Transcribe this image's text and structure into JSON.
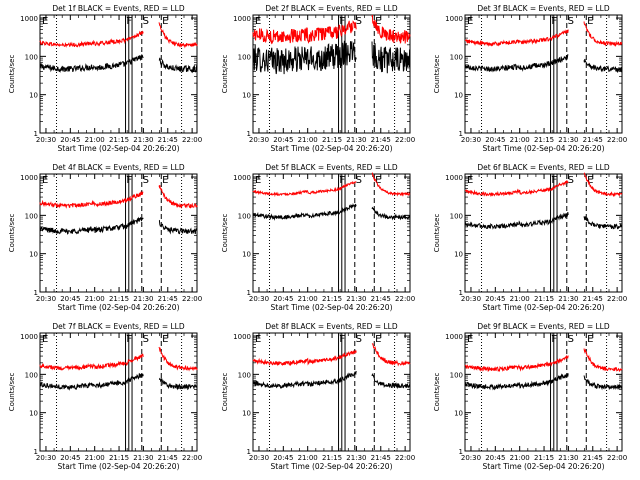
{
  "figure": {
    "xtick_labels": [
      "20:30",
      "20:45",
      "21:00",
      "21:15",
      "21:30",
      "21:45",
      "22:00"
    ],
    "ytick_labels": [
      "1",
      "10",
      "100",
      "1000"
    ],
    "xlabel": "Start Time (02-Sep-04 20:26:20)",
    "ylabel": "Counts/sec",
    "colors": {
      "events": "#000000",
      "lld": "#ff0000",
      "axes": "#000000"
    }
  },
  "chart_data": [
    {
      "type": "line",
      "title": "Det 1f BLACK = Events, RED = LLD",
      "series": [
        {
          "name": "Events",
          "level": 55,
          "noise": 0.08,
          "color": "#000000"
        },
        {
          "name": "LLD",
          "level": 230,
          "noise": 0.05,
          "color": "#ff0000"
        }
      ],
      "xlabel": "Start Time (02-Sep-04 20:26:20)",
      "ylabel": "Counts/sec",
      "ylim": [
        1,
        1200
      ],
      "log_y": true,
      "marker_letters": [
        "E",
        "F",
        "S",
        "E"
      ]
    },
    {
      "type": "line",
      "title": "Det 2f BLACK = Events, RED = LLD",
      "series": [
        {
          "name": "Events",
          "level": 90,
          "noise": 0.35,
          "color": "#000000"
        },
        {
          "name": "LLD",
          "level": 380,
          "noise": 0.18,
          "color": "#ff0000"
        }
      ],
      "xlabel": "Start Time (02-Sep-04 20:26:20)",
      "ylabel": "Counts/sec",
      "ylim": [
        1,
        1200
      ],
      "log_y": true,
      "marker_letters": [
        "E",
        "F",
        "S",
        "E"
      ]
    },
    {
      "type": "line",
      "title": "Det 3f BLACK = Events, RED = LLD",
      "series": [
        {
          "name": "Events",
          "level": 55,
          "noise": 0.07,
          "color": "#000000"
        },
        {
          "name": "LLD",
          "level": 250,
          "noise": 0.05,
          "color": "#ff0000"
        }
      ],
      "xlabel": "Start Time (02-Sep-04 20:26:20)",
      "ylabel": "Counts/sec",
      "ylim": [
        1,
        1200
      ],
      "log_y": true,
      "marker_letters": [
        "E",
        "F",
        "S",
        "E"
      ]
    },
    {
      "type": "line",
      "title": "Det 4f BLACK = Events, RED = LLD",
      "series": [
        {
          "name": "Events",
          "level": 45,
          "noise": 0.07,
          "color": "#000000"
        },
        {
          "name": "LLD",
          "level": 210,
          "noise": 0.05,
          "color": "#ff0000"
        }
      ],
      "xlabel": "Start Time (02-Sep-04 20:26:20)",
      "ylabel": "Counts/sec",
      "ylim": [
        1,
        1200
      ],
      "log_y": true,
      "marker_letters": [
        "E",
        "F",
        "S",
        "E"
      ]
    },
    {
      "type": "line",
      "title": "Det 5f BLACK = Events, RED = LLD",
      "series": [
        {
          "name": "Events",
          "level": 105,
          "noise": 0.05,
          "color": "#000000"
        },
        {
          "name": "LLD",
          "level": 420,
          "noise": 0.03,
          "color": "#ff0000"
        }
      ],
      "xlabel": "Start Time (02-Sep-04 20:26:20)",
      "ylabel": "Counts/sec",
      "ylim": [
        1,
        1200
      ],
      "log_y": true,
      "marker_letters": [
        "E",
        "F",
        "S",
        "E"
      ]
    },
    {
      "type": "line",
      "title": "Det 6f BLACK = Events, RED = LLD",
      "series": [
        {
          "name": "Events",
          "level": 60,
          "noise": 0.06,
          "color": "#000000"
        },
        {
          "name": "LLD",
          "level": 420,
          "noise": 0.04,
          "color": "#ff0000"
        }
      ],
      "xlabel": "Start Time (02-Sep-04 20:26:20)",
      "ylabel": "Counts/sec",
      "ylim": [
        1,
        1200
      ],
      "log_y": true,
      "marker_letters": [
        "E",
        "F",
        "S",
        "E"
      ]
    },
    {
      "type": "line",
      "title": "Det 7f BLACK = Events, RED = LLD",
      "series": [
        {
          "name": "Events",
          "level": 55,
          "noise": 0.06,
          "color": "#000000"
        },
        {
          "name": "LLD",
          "level": 170,
          "noise": 0.05,
          "color": "#ff0000"
        }
      ],
      "xlabel": "Start Time (02-Sep-04 20:26:20)",
      "ylabel": "Counts/sec",
      "ylim": [
        1,
        1200
      ],
      "log_y": true,
      "marker_letters": [
        "E",
        "F",
        "S",
        "E"
      ]
    },
    {
      "type": "line",
      "title": "Det 8f BLACK = Events, RED = LLD",
      "series": [
        {
          "name": "Events",
          "level": 60,
          "noise": 0.06,
          "color": "#000000"
        },
        {
          "name": "LLD",
          "level": 230,
          "noise": 0.05,
          "color": "#ff0000"
        }
      ],
      "xlabel": "Start Time (02-Sep-04 20:26:20)",
      "ylabel": "Counts/sec",
      "ylim": [
        1,
        1200
      ],
      "log_y": true,
      "marker_letters": [
        "E",
        "F",
        "S",
        "E"
      ]
    },
    {
      "type": "line",
      "title": "Det 9f BLACK = Events, RED = LLD",
      "series": [
        {
          "name": "Events",
          "level": 55,
          "noise": 0.06,
          "color": "#000000"
        },
        {
          "name": "LLD",
          "level": 160,
          "noise": 0.05,
          "color": "#ff0000"
        }
      ],
      "xlabel": "Start Time (02-Sep-04 20:26:20)",
      "ylabel": "Counts/sec",
      "ylim": [
        1,
        1200
      ],
      "log_y": true,
      "marker_letters": [
        "E",
        "F",
        "S",
        "E"
      ]
    }
  ]
}
